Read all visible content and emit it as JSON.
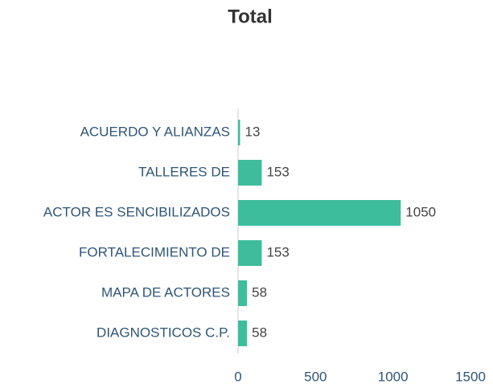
{
  "chart_data": {
    "type": "bar",
    "orientation": "horizontal",
    "title": "Total",
    "categories": [
      "ACUERDO Y ALIANZAS",
      "TALLERES DE",
      "ACTOR ES SENCIBILIZADOS",
      "FORTALECIMIENTO DE",
      "MAPA DE ACTORES",
      "DIAGNOSTICOS C.P."
    ],
    "values": [
      13,
      153,
      1050,
      153,
      58,
      58
    ],
    "color": "#3dbd9c",
    "xlim": [
      0,
      1500
    ],
    "xticks": [
      0,
      500,
      1000,
      1500
    ],
    "grid": false
  }
}
